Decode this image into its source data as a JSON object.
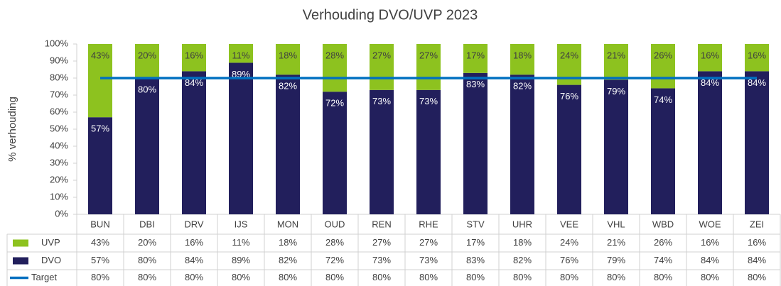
{
  "chart_data": {
    "type": "bar",
    "stacked": true,
    "title": "Verhouding DVO/UVP 2023",
    "ylabel": "% verhouding",
    "categories": [
      "BUN",
      "DBI",
      "DRV",
      "IJS",
      "MON",
      "OUD",
      "REN",
      "RHE",
      "STV",
      "UHR",
      "VEE",
      "VHL",
      "WBD",
      "WOE",
      "ZEI"
    ],
    "series": [
      {
        "name": "UVP",
        "color": "#8dc21f",
        "values": [
          43,
          20,
          16,
          11,
          18,
          28,
          27,
          27,
          17,
          18,
          24,
          21,
          26,
          16,
          16
        ],
        "value_labels": [
          "43%",
          "20%",
          "16%",
          "11%",
          "18%",
          "28%",
          "27%",
          "27%",
          "17%",
          "18%",
          "24%",
          "21%",
          "26%",
          "16%",
          "16%"
        ]
      },
      {
        "name": "DVO",
        "color": "#221f5c",
        "values": [
          57,
          80,
          84,
          89,
          82,
          72,
          73,
          73,
          83,
          82,
          76,
          79,
          74,
          84,
          84
        ],
        "value_labels": [
          "57%",
          "80%",
          "84%",
          "89%",
          "82%",
          "72%",
          "73%",
          "73%",
          "83%",
          "82%",
          "76%",
          "79%",
          "74%",
          "84%",
          "84%"
        ]
      },
      {
        "name": "Target",
        "color": "#0070c0",
        "type": "line",
        "values": [
          80,
          80,
          80,
          80,
          80,
          80,
          80,
          80,
          80,
          80,
          80,
          80,
          80,
          80,
          80
        ],
        "value_labels": [
          "80%",
          "80%",
          "80%",
          "80%",
          "80%",
          "80%",
          "80%",
          "80%",
          "80%",
          "80%",
          "80%",
          "80%",
          "80%",
          "80%",
          "80%"
        ]
      }
    ],
    "ylim": [
      0,
      100
    ],
    "yticks": [
      {
        "value": 0,
        "label": "0%"
      },
      {
        "value": 10,
        "label": "10%"
      },
      {
        "value": 20,
        "label": "20%"
      },
      {
        "value": 30,
        "label": "30%"
      },
      {
        "value": 40,
        "label": "40%"
      },
      {
        "value": 50,
        "label": "50%"
      },
      {
        "value": 60,
        "label": "60%"
      },
      {
        "value": 70,
        "label": "70%"
      },
      {
        "value": 80,
        "label": "80%"
      },
      {
        "value": 90,
        "label": "90%"
      },
      {
        "value": 100,
        "label": "100%"
      }
    ],
    "grid": false
  }
}
